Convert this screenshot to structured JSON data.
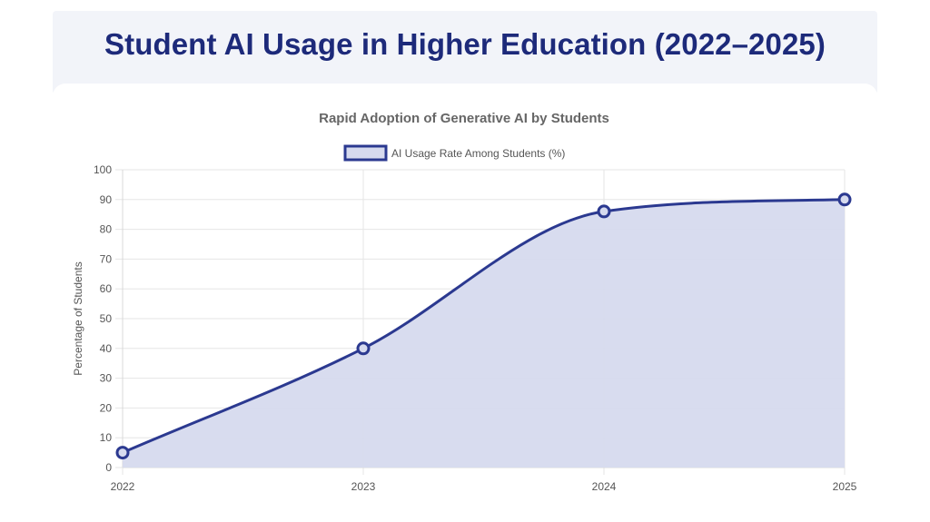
{
  "page": {
    "title": "Student AI Usage in Higher Education (2022–2025)"
  },
  "chart_data": {
    "type": "area",
    "title": "Rapid Adoption of Generative AI by Students",
    "categories": [
      "2022",
      "2023",
      "2024",
      "2025"
    ],
    "series": [
      {
        "name": "AI Usage Rate Among Students (%)",
        "values": [
          5,
          40,
          86,
          90
        ],
        "color": "#2b3990",
        "fill": "#d6daee"
      }
    ],
    "xlabel": "",
    "ylabel": "Percentage of Students",
    "ylim": [
      0,
      100
    ],
    "yticks": [
      0,
      10,
      20,
      30,
      40,
      50,
      60,
      70,
      80,
      90,
      100
    ],
    "grid": true,
    "legend": "top-center"
  }
}
